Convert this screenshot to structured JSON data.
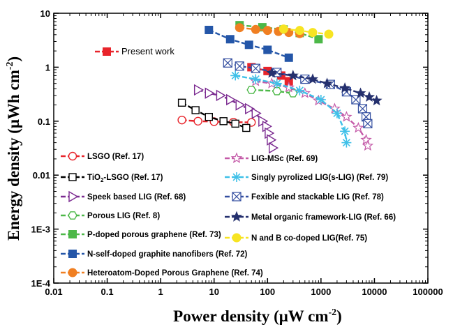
{
  "chart_data": {
    "type": "scatter",
    "title": "",
    "xlabel": "Power density (μW cm",
    "xlabel_sup": "-2",
    "xlabel_close": ")",
    "ylabel": "Energy density (μWh cm",
    "ylabel_sup": "-2",
    "ylabel_close": ")",
    "x_scale": "log",
    "y_scale": "log",
    "xlim": [
      0.01,
      100000
    ],
    "ylim": [
      0.0001,
      10
    ],
    "x_ticks": [
      "0.01",
      "0.1",
      "1",
      "10",
      "100",
      "1000",
      "10000",
      "100000"
    ],
    "y_ticks": [
      "1E-4",
      "1E-3",
      "0.01",
      "0.1",
      "1",
      "10"
    ],
    "grid": false,
    "series": [
      {
        "name": "Present work",
        "color": "#e8242b",
        "marker": "square-filled",
        "points": [
          [
            50,
            1.0
          ],
          [
            100,
            0.85
          ],
          [
            180,
            0.7
          ],
          [
            250,
            0.55
          ]
        ]
      },
      {
        "name": "LSGO (Ref. 17)",
        "color": "#e8242b",
        "marker": "circle-open",
        "points": [
          [
            2.5,
            0.105
          ],
          [
            5,
            0.1
          ],
          [
            10,
            0.098
          ],
          [
            23,
            0.096
          ],
          [
            50,
            0.095
          ]
        ]
      },
      {
        "name": "TiO",
        "name_sub": "2",
        "name_rest": "-LSGO (Ref. 17)",
        "color": "#000000",
        "marker": "square-open",
        "points": [
          [
            2.5,
            0.22
          ],
          [
            4.5,
            0.16
          ],
          [
            8,
            0.12
          ],
          [
            15,
            0.1
          ],
          [
            25,
            0.09
          ],
          [
            40,
            0.075
          ]
        ]
      },
      {
        "name": "Speek based LIG (Ref. 68)",
        "color": "#7b2a90",
        "marker": "triangle-right-open",
        "points": [
          [
            5,
            0.38
          ],
          [
            8,
            0.33
          ],
          [
            13,
            0.3
          ],
          [
            20,
            0.25
          ],
          [
            30,
            0.2
          ],
          [
            45,
            0.17
          ],
          [
            60,
            0.14
          ],
          [
            80,
            0.1
          ],
          [
            95,
            0.08
          ],
          [
            105,
            0.06
          ],
          [
            115,
            0.045
          ],
          [
            125,
            0.032
          ]
        ]
      },
      {
        "name": "Porous LIG (Ref. 8)",
        "color": "#4cb848",
        "marker": "hexagon-open",
        "points": [
          [
            50,
            0.38
          ],
          [
            150,
            0.36
          ],
          [
            300,
            0.33
          ]
        ]
      },
      {
        "name": "P-doped porous graphene (Ref. 73)",
        "color": "#4cb848",
        "marker": "square-filled",
        "points": [
          [
            30,
            6.0
          ],
          [
            80,
            5.5
          ],
          [
            200,
            5.0
          ],
          [
            400,
            4.3
          ],
          [
            900,
            3.3
          ]
        ]
      },
      {
        "name": "N-self-doped graphite nanofibers (Ref. 72)",
        "color": "#2456a8",
        "marker": "square-filled",
        "points": [
          [
            8,
            4.9
          ],
          [
            20,
            3.3
          ],
          [
            45,
            2.6
          ],
          [
            100,
            2.1
          ],
          [
            250,
            1.5
          ]
        ]
      },
      {
        "name": "Heteroatom-Doped Porous Graphene (Ref. 74)",
        "color": "#f07f22",
        "marker": "circle-filled",
        "points": [
          [
            30,
            5.4
          ],
          [
            60,
            5.0
          ],
          [
            100,
            4.8
          ],
          [
            160,
            4.6
          ],
          [
            250,
            4.4
          ],
          [
            400,
            4.2
          ]
        ]
      },
      {
        "name": "LIG-MSc (Ref. 69)",
        "color": "#c45aa8",
        "marker": "star-open",
        "points": [
          [
            60,
            0.55
          ],
          [
            120,
            0.5
          ],
          [
            250,
            0.42
          ],
          [
            500,
            0.33
          ],
          [
            900,
            0.24
          ],
          [
            1800,
            0.17
          ],
          [
            3000,
            0.12
          ],
          [
            5000,
            0.075
          ],
          [
            7000,
            0.045
          ],
          [
            7500,
            0.035
          ]
        ]
      },
      {
        "name": "Singly pyrolized LIG(s-LIG) (Ref. 79)",
        "color": "#3fc0e8",
        "marker": "asterisk",
        "points": [
          [
            25,
            0.7
          ],
          [
            60,
            0.6
          ],
          [
            150,
            0.5
          ],
          [
            400,
            0.37
          ],
          [
            1000,
            0.25
          ],
          [
            2000,
            0.14
          ],
          [
            2800,
            0.065
          ],
          [
            3000,
            0.04
          ]
        ]
      },
      {
        "name": "Fexible and stackable LIG (Ref. 78)",
        "color": "#334ea0",
        "marker": "cross-box",
        "points": [
          [
            18,
            1.2
          ],
          [
            30,
            1.05
          ],
          [
            60,
            0.95
          ],
          [
            150,
            0.8
          ],
          [
            500,
            0.6
          ],
          [
            1500,
            0.48
          ],
          [
            3000,
            0.35
          ],
          [
            4500,
            0.25
          ],
          [
            6000,
            0.17
          ],
          [
            7000,
            0.12
          ],
          [
            7500,
            0.09
          ]
        ]
      },
      {
        "name": "Metal organic framework-LIG (Ref. 66)",
        "color": "#25306e",
        "marker": "star-filled",
        "points": [
          [
            120,
            0.78
          ],
          [
            300,
            0.7
          ],
          [
            700,
            0.6
          ],
          [
            1300,
            0.5
          ],
          [
            2800,
            0.41
          ],
          [
            5500,
            0.33
          ],
          [
            8000,
            0.28
          ],
          [
            11000,
            0.24
          ]
        ]
      },
      {
        "name": "N and B co-doped LIG(Ref. 75)",
        "color": "#f7e423",
        "marker": "circle-filled",
        "points": [
          [
            200,
            5.1
          ],
          [
            400,
            4.8
          ],
          [
            700,
            4.4
          ],
          [
            1400,
            4.1
          ]
        ]
      }
    ],
    "legend_top": {
      "label": "Present work"
    },
    "legend_left": [
      "LSGO (Ref. 17)",
      "TiO2-LSGO (Ref. 17)",
      "Speek based LIG (Ref. 68)",
      "Porous LIG (Ref. 8)",
      "P-doped porous graphene (Ref. 73)",
      "N-self-doped graphite nanofibers (Ref. 72)",
      "Heteroatom-Doped Porous Graphene (Ref. 74)"
    ],
    "legend_right": [
      "LIG-MSc (Ref. 69)",
      "Singly pyrolized LIG(s-LIG) (Ref. 79)",
      "Fexible and stackable LIG (Ref. 78)",
      "Metal organic framework-LIG (Ref. 66)",
      "N and B co-doped LIG(Ref. 75)"
    ]
  }
}
